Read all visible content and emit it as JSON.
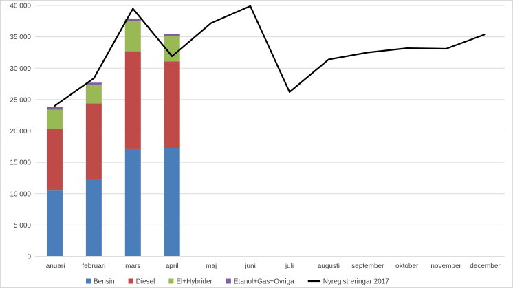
{
  "chart_data": {
    "type": "bar",
    "stacked": true,
    "categories": [
      "januari",
      "februari",
      "mars",
      "april",
      "maj",
      "juni",
      "juli",
      "augusti",
      "september",
      "oktober",
      "november",
      "december"
    ],
    "series": [
      {
        "name": "Bensin",
        "type": "bar",
        "color": "#4a7ebb",
        "values": [
          10500,
          12300,
          17100,
          17300,
          null,
          null,
          null,
          null,
          null,
          null,
          null,
          null
        ]
      },
      {
        "name": "Diesel",
        "type": "bar",
        "color": "#be4b48",
        "values": [
          9800,
          12100,
          15600,
          13800,
          null,
          null,
          null,
          null,
          null,
          null,
          null,
          null
        ]
      },
      {
        "name": "El+Hybrider",
        "type": "bar",
        "color": "#98b954",
        "values": [
          3100,
          3000,
          4800,
          4000,
          null,
          null,
          null,
          null,
          null,
          null,
          null,
          null
        ]
      },
      {
        "name": "Etanol+Gas+Övriga",
        "type": "bar",
        "color": "#7d60a0",
        "values": [
          400,
          300,
          400,
          400,
          null,
          null,
          null,
          null,
          null,
          null,
          null,
          null
        ]
      },
      {
        "name": "Nyregistreringar 2017",
        "type": "line",
        "color": "#000000",
        "values": [
          24000,
          28400,
          39500,
          31900,
          37200,
          39900,
          26200,
          31400,
          32500,
          33200,
          33100,
          35400
        ]
      }
    ],
    "ylim": [
      0,
      40000
    ],
    "yticks": [
      0,
      5000,
      10000,
      15000,
      20000,
      25000,
      30000,
      35000,
      40000
    ],
    "ytick_labels": [
      "0",
      "5 000",
      "10 000",
      "15 000",
      "20 000",
      "25 000",
      "30 000",
      "35 000",
      "40 000"
    ],
    "grid": "horizontal",
    "legend_position": "bottom"
  }
}
